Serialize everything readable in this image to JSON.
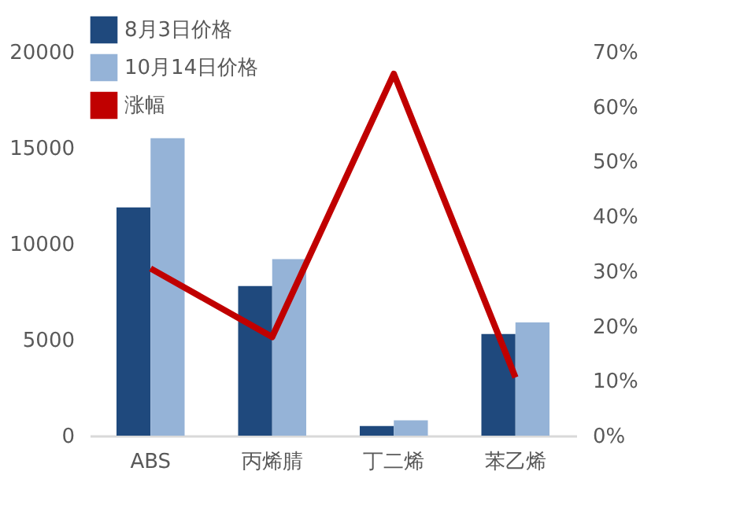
{
  "chart_data": {
    "type": "bar",
    "categories": [
      "ABS",
      "丙烯腈",
      "丁二烯",
      "苯乙烯"
    ],
    "series": [
      {
        "name": "8月3日价格",
        "color": "#1f497d",
        "values": [
          11900,
          7800,
          500,
          5300
        ]
      },
      {
        "name": "10月14日价格",
        "color": "#95b3d7",
        "values": [
          15500,
          9200,
          800,
          5900
        ]
      },
      {
        "name": "涨幅",
        "type": "line",
        "axis": "y2",
        "color": "#c00000",
        "values": [
          30.5,
          18,
          66,
          10.6
        ]
      }
    ],
    "ylim": [
      0,
      20000
    ],
    "yticks": [
      0,
      5000,
      10000,
      15000,
      20000
    ],
    "y2lim": [
      0,
      70
    ],
    "y2ticks": [
      {
        "value": 0,
        "label": "0%"
      },
      {
        "value": 10,
        "label": "10%"
      },
      {
        "value": 20,
        "label": "20%"
      },
      {
        "value": 30,
        "label": "30%"
      },
      {
        "value": 40,
        "label": "40%"
      },
      {
        "value": 50,
        "label": "50%"
      },
      {
        "value": 60,
        "label": "60%"
      },
      {
        "value": 70,
        "label": "70%"
      }
    ],
    "grid": false,
    "legend": "top",
    "marker": "none",
    "line_style": "solid"
  }
}
